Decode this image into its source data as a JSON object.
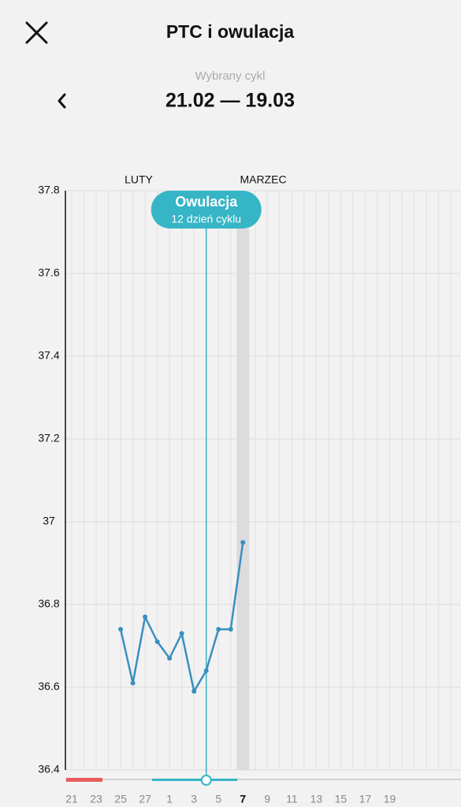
{
  "header": {
    "title": "PTC i owulacja",
    "cycle_label": "Wybrany cykl",
    "cycle_range": "21.02 — 19.03"
  },
  "chart_data": {
    "type": "line",
    "months": [
      "LUTY",
      "MARZEC"
    ],
    "categories": [
      "21",
      null,
      "23",
      null,
      "25",
      null,
      "27",
      null,
      "1",
      null,
      "3",
      null,
      "5",
      null,
      "7",
      null,
      "9",
      null,
      "11",
      null,
      "13",
      null,
      "15",
      null,
      "17",
      null,
      "19",
      null,
      null,
      null,
      null,
      null,
      null
    ],
    "values": [
      null,
      null,
      null,
      null,
      36.74,
      36.61,
      36.77,
      36.71,
      36.67,
      36.73,
      36.59,
      36.64,
      36.74,
      36.74,
      36.95,
      null,
      null,
      null,
      null,
      null,
      null,
      null,
      null,
      null,
      null,
      null,
      null,
      null,
      null,
      null,
      null,
      null,
      null
    ],
    "color": "#3a8fc0",
    "ylim": [
      36.4,
      37.8
    ],
    "yticks": [
      36.4,
      36.6,
      36.8,
      37,
      37.2,
      37.4,
      37.6,
      37.8
    ],
    "grid": true,
    "highlight_index": 14,
    "ovulation_index": 11,
    "annotation": {
      "title": "Owulacja",
      "subtitle": "12 dzień cyklu"
    }
  }
}
